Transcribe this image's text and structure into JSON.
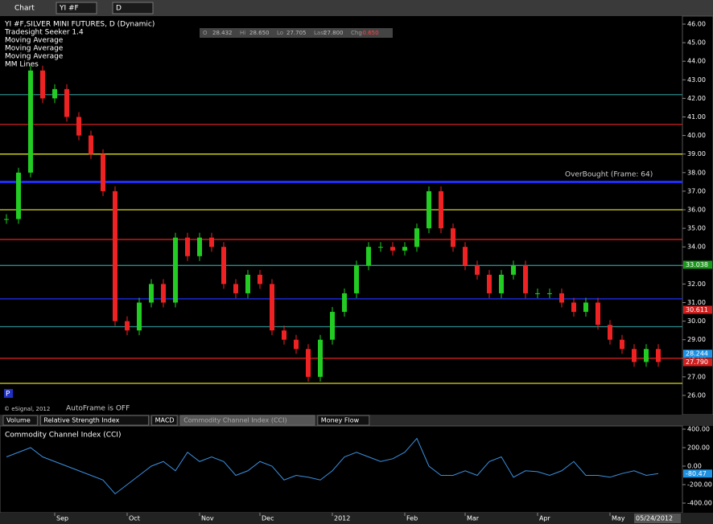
{
  "toolbar": {
    "title": "Chart",
    "symbol": "YI #F",
    "interval": "D"
  },
  "header": {
    "lines": [
      "YI #F,SILVER MINI FUTURES, D (Dynamic)",
      "Tradesight Seeker 1.4",
      "Moving Average",
      "Moving Average",
      "Moving Average",
      "MM Lines"
    ]
  },
  "quote": [
    {
      "label": "O",
      "value": "28.432"
    },
    {
      "label": "Hi",
      "value": "28.650"
    },
    {
      "label": "Lo",
      "value": "27.705"
    },
    {
      "label": "Last",
      "value": "27.800"
    },
    {
      "label": "Chg",
      "value": "-0.650"
    }
  ],
  "annotations": {
    "overbought": "OverBought (Frame: 64)",
    "autoframe": "AutoFrame is OFF",
    "copyright": "© eSignal, 2012",
    "date": "05/24/2012"
  },
  "tabs": [
    "Volume",
    "Relative Strength Index",
    "MACD",
    "Commodity Channel Index (CCI)",
    "Money Flow"
  ],
  "price_chart": {
    "type": "candlestick",
    "categories": [
      null,
      null,
      null,
      null,
      "Sep",
      null,
      null,
      null,
      null,
      null,
      "Oct",
      null,
      null,
      null,
      null,
      null,
      "Nov",
      null,
      null,
      null,
      null,
      "Dec",
      null,
      null,
      null,
      null,
      null,
      "2012",
      null,
      null,
      null,
      null,
      null,
      "Feb",
      null,
      null,
      null,
      null,
      "Mar",
      null,
      null,
      null,
      null,
      null,
      "Apr",
      null,
      null,
      null,
      null,
      null,
      "May",
      null,
      null,
      null,
      null
    ],
    "values": [
      35.5,
      38,
      43.5,
      42,
      42.5,
      41,
      40,
      39,
      37,
      30,
      29.5,
      31,
      32,
      31,
      34.5,
      33.5,
      34.5,
      34,
      32,
      31.5,
      32.5,
      32,
      29.5,
      29,
      28.5,
      27,
      29,
      30.5,
      31.5,
      33,
      34,
      34,
      33.8,
      34,
      35,
      37,
      35,
      34,
      33,
      32.5,
      31.5,
      32.5,
      33,
      31.5,
      31.5,
      31.5,
      31,
      30.5,
      31,
      29.8,
      29,
      28.5,
      27.8,
      28.5,
      27.8
    ],
    "ylim": [
      25.2,
      46.4
    ],
    "yticks": [
      {
        "value": 46,
        "label": "46.00"
      },
      {
        "value": 45,
        "label": "45.00"
      },
      {
        "value": 44,
        "label": "44.00"
      },
      {
        "value": 43,
        "label": "43.00"
      },
      {
        "value": 42,
        "label": "42.00"
      },
      {
        "value": 41,
        "label": "41.00"
      },
      {
        "value": 40,
        "label": "40.00"
      },
      {
        "value": 39,
        "label": "39.00"
      },
      {
        "value": 38,
        "label": "38.00"
      },
      {
        "value": 37,
        "label": "37.00"
      },
      {
        "value": 36,
        "label": "36.00"
      },
      {
        "value": 35,
        "label": "35.00"
      },
      {
        "value": 34,
        "label": "34.00"
      },
      {
        "value": 33,
        "label": "33.00"
      },
      {
        "value": 32,
        "label": "32.00"
      },
      {
        "value": 31,
        "label": "31.00"
      },
      {
        "value": 30,
        "label": "30.00"
      },
      {
        "value": 29,
        "label": "29.00"
      },
      {
        "value": 28,
        "label": "28.00"
      },
      {
        "value": 27,
        "label": "27.00"
      },
      {
        "value": 26,
        "label": "26.00"
      }
    ],
    "levels": [
      {
        "value": 42.2,
        "color": "#2a8a8a"
      },
      {
        "value": 40.6,
        "color": "#d02020"
      },
      {
        "value": 39,
        "color": "#d8d820"
      },
      {
        "value": 37.5,
        "color": "#2030ff"
      },
      {
        "value": 36,
        "color": "#d8d820"
      },
      {
        "value": 34.4,
        "color": "#d02020"
      },
      {
        "value": 33,
        "color": "#2a8a8a"
      },
      {
        "value": 31.2,
        "color": "#2030ff"
      },
      {
        "value": 29.7,
        "color": "#2a8a8a"
      },
      {
        "value": 28,
        "color": "#d02020"
      },
      {
        "value": 26.65,
        "color": "#d8d820"
      }
    ],
    "last_labels": [
      {
        "value": 33.038,
        "label": "33.038",
        "color": "#1a9a1a"
      },
      {
        "value": 30.611,
        "label": "30.611",
        "color": "#d02020"
      },
      {
        "value": 28.244,
        "label": "28.244",
        "color": "#2090e0"
      },
      {
        "value": 27.79,
        "label": "27.790",
        "color": "#d02020"
      }
    ]
  },
  "cci_chart": {
    "type": "line",
    "title": "Commodity Channel Index (CCI)",
    "color": "#3a90e0",
    "values": [
      100,
      150,
      200,
      100,
      50,
      0,
      -50,
      -100,
      -150,
      -300,
      -200,
      -100,
      0,
      50,
      -50,
      150,
      50,
      100,
      50,
      -100,
      -50,
      50,
      0,
      -150,
      -100,
      -120,
      -150,
      -50,
      100,
      150,
      100,
      50,
      80,
      150,
      300,
      0,
      -100,
      -100,
      -50,
      -100,
      50,
      100,
      -120,
      -50,
      -60,
      -100,
      -50,
      50,
      -100,
      -100,
      -120,
      -80,
      -50,
      -100,
      -80.47
    ],
    "value_labels": {
      "last": "-80.47"
    },
    "ylim": [
      -500,
      440
    ],
    "yticks": [
      {
        "value": 400,
        "label": "400.00"
      },
      {
        "value": 200,
        "label": "200.00"
      },
      {
        "value": 0,
        "label": "0.00"
      },
      {
        "value": -200,
        "label": "-200.00"
      },
      {
        "value": -400,
        "label": "-400.00"
      }
    ]
  }
}
